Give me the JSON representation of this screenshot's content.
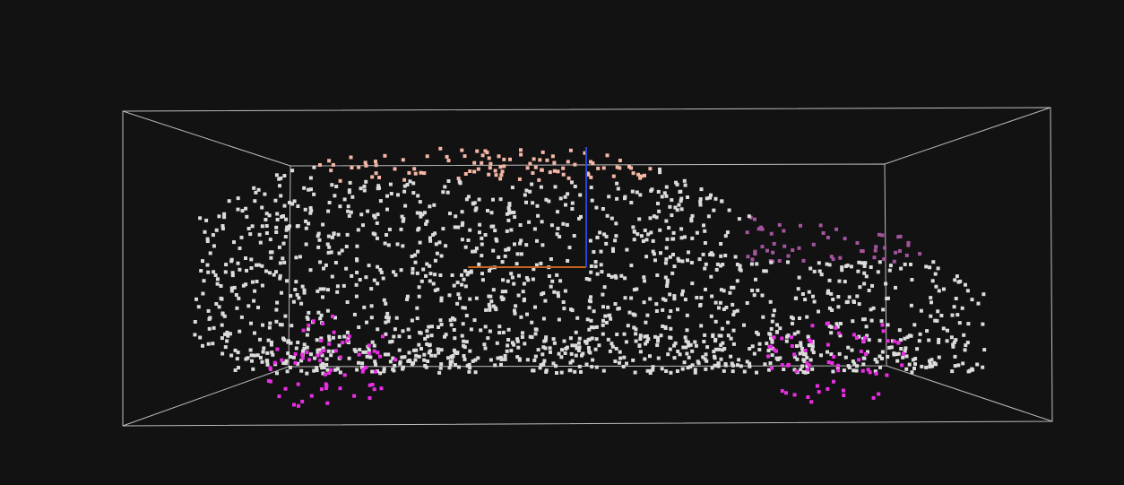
{
  "viewer": {
    "background": "#121212",
    "bbox_color": "#bdbdbd",
    "axis_x_color": "#c8641e",
    "axis_z_color": "#2447d8"
  },
  "point_cloud": {
    "object": "car",
    "point_color": "#dcdcdc",
    "parts": [
      {
        "name": "roof",
        "color": "#f6b7a6"
      },
      {
        "name": "body",
        "color": "#dcdcdc"
      },
      {
        "name": "hood",
        "color": "#a4549e"
      },
      {
        "name": "wheels",
        "color": "#e92ee3"
      }
    ]
  }
}
